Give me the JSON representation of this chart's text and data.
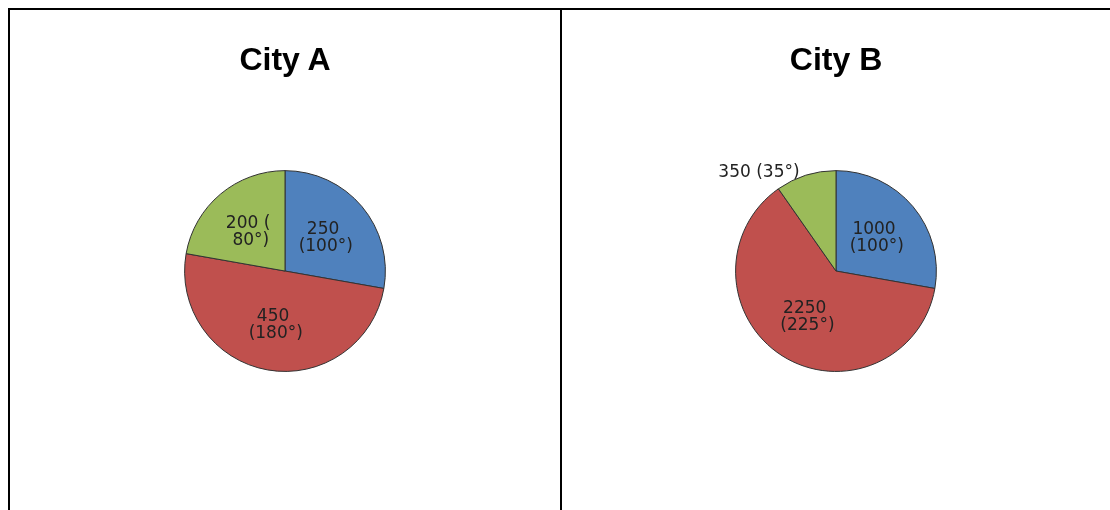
{
  "chart_data": [
    {
      "type": "pie",
      "title": "City A",
      "categories": [
        null,
        null,
        null
      ],
      "values": [
        250,
        450,
        200
      ],
      "colors": [
        "#4f81bd",
        "#c0504d",
        "#9bbb59"
      ],
      "value_labels": [
        "250 (100°)",
        "450 (180°)",
        "200 ( 80°)"
      ]
    },
    {
      "type": "pie",
      "title": "City B",
      "categories": [
        null,
        null,
        null
      ],
      "values": [
        1000,
        2250,
        350
      ],
      "colors": [
        "#4f81bd",
        "#c0504d",
        "#9bbb59"
      ],
      "value_labels": [
        "1000 (100°)",
        "2250 (225°)",
        "350 (35°)"
      ]
    }
  ]
}
